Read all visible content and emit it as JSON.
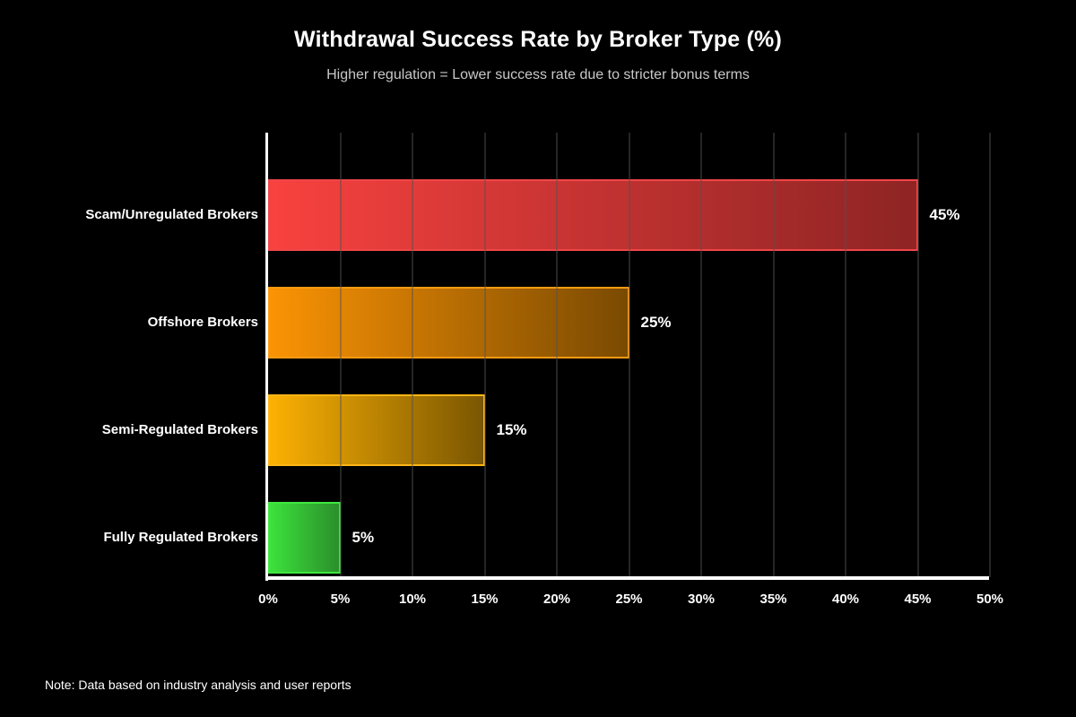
{
  "chart_data": {
    "type": "bar",
    "orientation": "horizontal",
    "title": "Withdrawal Success Rate by Broker Type (%)",
    "subtitle": "Higher regulation = Lower success rate due to stricter bonus terms",
    "categories": [
      "Scam/Unregulated Brokers",
      "Offshore Brokers",
      "Semi-Regulated Brokers",
      "Fully Regulated Brokers"
    ],
    "values": [
      45,
      25,
      15,
      5
    ],
    "value_labels": [
      "45%",
      "25%",
      "15%",
      "5%"
    ],
    "xlim": [
      0,
      50
    ],
    "x_tick_step": 5,
    "x_ticks": [
      "0%",
      "5%",
      "10%",
      "15%",
      "20%",
      "25%",
      "30%",
      "35%",
      "40%",
      "45%",
      "50%"
    ],
    "grid": true,
    "legend": "none",
    "note": "Note: Data based on industry analysis and user reports",
    "colors": {
      "background": "#000000",
      "title_text": "#ffffff",
      "subtitle_text": "#c8c8c8",
      "axis": "#ffffff",
      "gridline": "#2a2a2a",
      "label_text": "#ffffff",
      "bars": [
        {
          "from": "#f8423f",
          "to": "#8e2424",
          "border": "#f04547"
        },
        {
          "from": "#fb9304",
          "to": "#7a4a02",
          "border": "#fc9a10"
        },
        {
          "from": "#fcb103",
          "to": "#7a5602",
          "border": "#fdb515"
        },
        {
          "from": "#3ce23c",
          "to": "#2b8f2b",
          "border": "#3ee83e"
        }
      ]
    }
  }
}
